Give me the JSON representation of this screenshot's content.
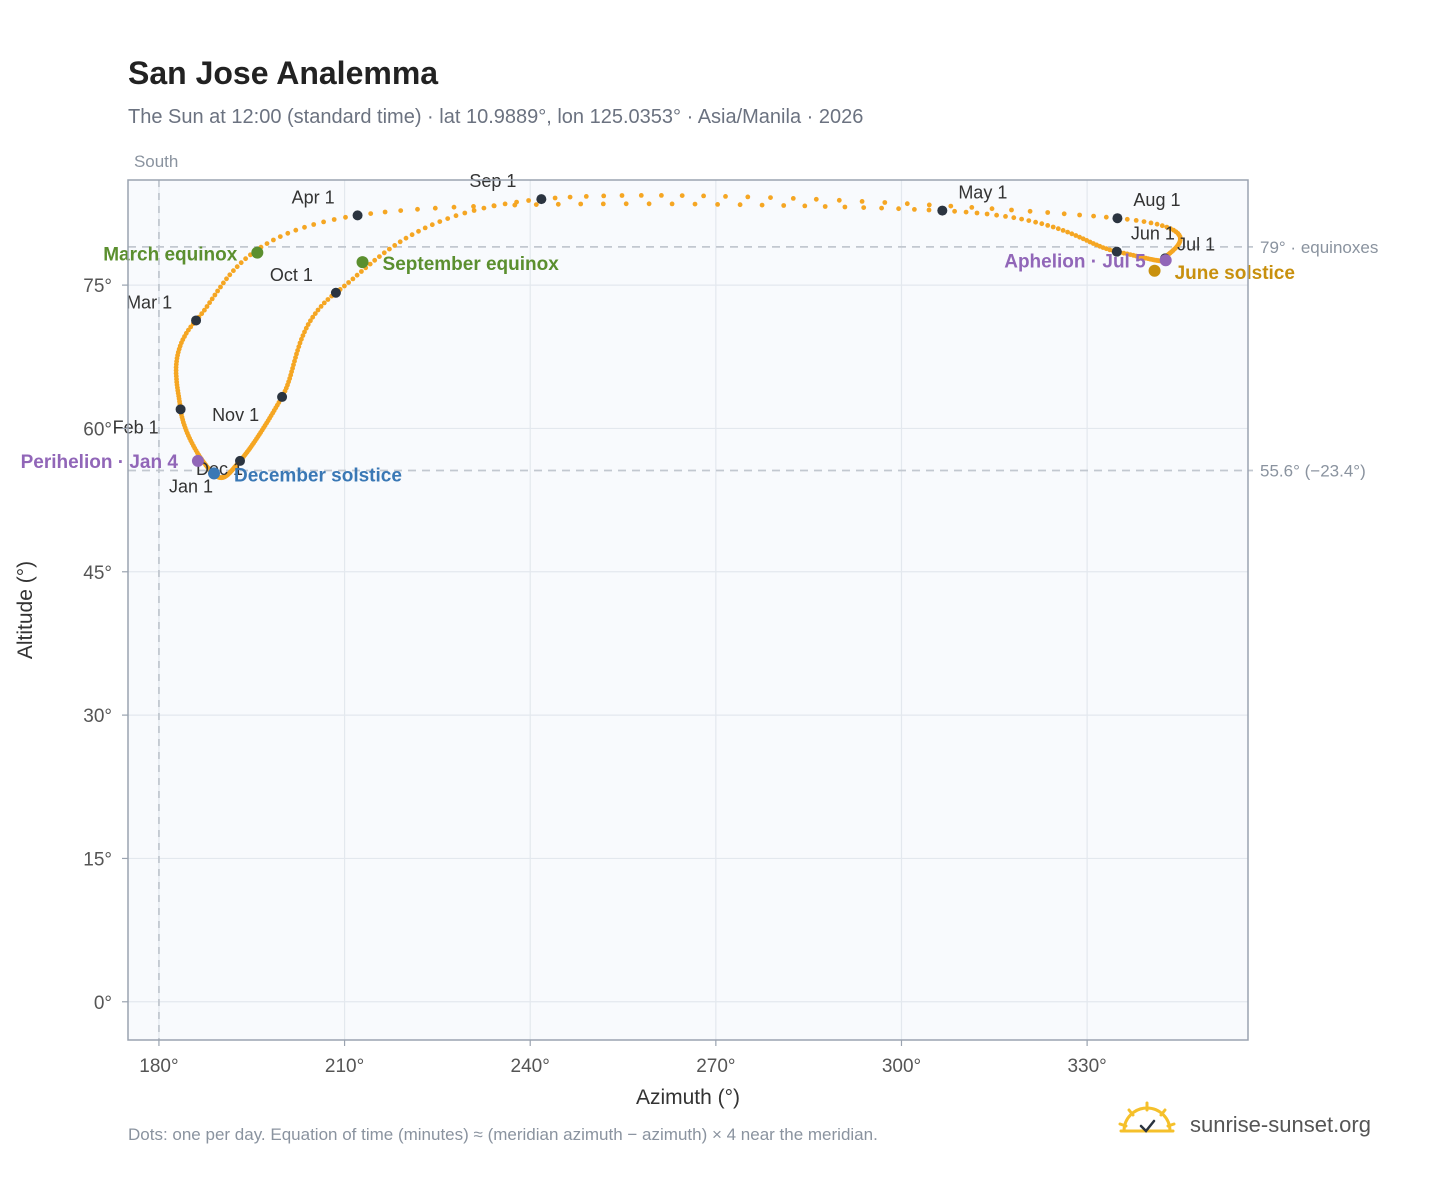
{
  "title": "San Jose Analemma",
  "subtitle": "The Sun at 12:00 (standard time) · lat 10.9889°, lon 125.0353° · Asia/Manila · 2026",
  "footer_note": "Dots: one per day. Equation of time (minutes) ≈ (meridian azimuth − azimuth) × 4 near the meridian.",
  "brand": "sunrise-sunset.org",
  "colors": {
    "path": "#f5a623",
    "month_dot": "#2b3440",
    "equinox": "#5b8f2f",
    "december_solstice": "#3a78b5",
    "june_solstice": "#c8900e",
    "aphelion_perihelion": "#9166b8",
    "plot_bg": "#f8fafd",
    "grid": "#e3e8ee",
    "frame": "#9aa3b0",
    "ref_line": "#c2c8d0"
  },
  "chart_data": {
    "type": "scatter",
    "title": "San Jose Analemma",
    "xlabel": "Azimuth (°)",
    "ylabel": "Altitude (°)",
    "xlim": [
      175,
      356
    ],
    "ylim": [
      -4,
      86
    ],
    "x_ticks": [
      180,
      210,
      240,
      270,
      300,
      330
    ],
    "x_tick_labels": [
      "180°",
      "210°",
      "240°",
      "270°",
      "300°",
      "330°"
    ],
    "y_ticks": [
      0,
      15,
      30,
      45,
      60,
      75
    ],
    "y_tick_labels": [
      "0°",
      "15°",
      "30°",
      "45°",
      "60°",
      "75°"
    ],
    "grid": true,
    "reference_lines": [
      {
        "axis": "x",
        "value": 180,
        "label": "South"
      },
      {
        "axis": "y",
        "value": 79.0,
        "label": "79° · equinoxes"
      },
      {
        "axis": "y",
        "value": 55.6,
        "label": "55.6° (−23.4°)"
      }
    ],
    "month_markers": [
      {
        "label": "Jan 1",
        "x": 188.9,
        "y": 55.2
      },
      {
        "label": "Feb 1",
        "x": 183.5,
        "y": 62.0
      },
      {
        "label": "Mar 1",
        "x": 186.0,
        "y": 71.3
      },
      {
        "label": "Apr 1",
        "x": 212.1,
        "y": 82.3
      },
      {
        "label": "May 1",
        "x": 306.6,
        "y": 82.8
      },
      {
        "label": "Jun 1",
        "x": 334.8,
        "y": 78.5
      },
      {
        "label": "Jul 1",
        "x": 342.6,
        "y": 77.8
      },
      {
        "label": "Aug 1",
        "x": 334.9,
        "y": 82.0
      },
      {
        "label": "Sep 1",
        "x": 241.8,
        "y": 84.0
      },
      {
        "label": "Oct 1",
        "x": 208.6,
        "y": 74.2
      },
      {
        "label": "Nov 1",
        "x": 199.9,
        "y": 63.3
      },
      {
        "label": "Dec 1",
        "x": 193.1,
        "y": 56.6
      }
    ],
    "events": [
      {
        "label": "March equinox",
        "x": 195.9,
        "y": 78.4
      },
      {
        "label": "September equinox",
        "x": 212.9,
        "y": 77.4
      },
      {
        "label": "December solstice",
        "x": 188.9,
        "y": 55.3
      },
      {
        "label": "June solstice",
        "x": 340.9,
        "y": 76.5
      },
      {
        "label": "Perihelion · Jan 4",
        "x": 186.3,
        "y": 56.6
      },
      {
        "label": "Aphelion · Jul 5",
        "x": 342.7,
        "y": 77.6
      }
    ]
  }
}
